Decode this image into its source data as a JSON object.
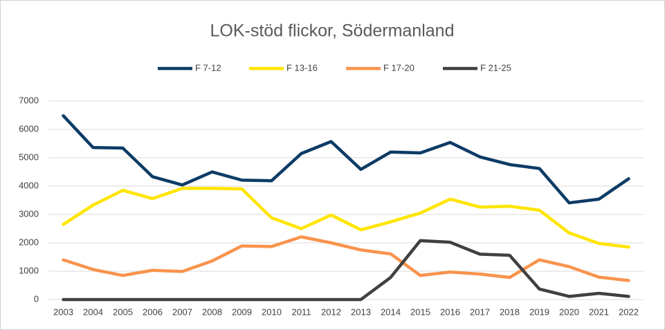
{
  "chart_data": {
    "type": "line",
    "title": "LOK-stöd flickor, Södermanland",
    "categories": [
      "2003",
      "2004",
      "2005",
      "2006",
      "2007",
      "2008",
      "2009",
      "2010",
      "2011",
      "2012",
      "2013",
      "2014",
      "2015",
      "2016",
      "2017",
      "2018",
      "2019",
      "2020",
      "2021",
      "2022"
    ],
    "series": [
      {
        "name": "F 7-12",
        "color": "#0d3b66",
        "values": [
          6480,
          5360,
          5340,
          4330,
          4040,
          4500,
          4210,
          4190,
          5150,
          5570,
          4590,
          5200,
          5170,
          5540,
          5030,
          4760,
          4620,
          3410,
          3540,
          4260
        ]
      },
      {
        "name": "F 13-16",
        "color": "#ffe500",
        "values": [
          2650,
          3330,
          3850,
          3560,
          3920,
          3920,
          3900,
          2880,
          2500,
          2980,
          2460,
          2740,
          3050,
          3540,
          3260,
          3290,
          3150,
          2350,
          1980,
          1850
        ]
      },
      {
        "name": "F 17-20",
        "color": "#f9934c",
        "values": [
          1400,
          1060,
          850,
          1030,
          990,
          1360,
          1890,
          1870,
          2210,
          2000,
          1750,
          1610,
          850,
          970,
          900,
          780,
          1400,
          1160,
          790,
          670
        ]
      },
      {
        "name": "F 21-25",
        "color": "#404040",
        "values": [
          0,
          0,
          0,
          0,
          0,
          0,
          0,
          0,
          0,
          0,
          0,
          780,
          2080,
          2020,
          1600,
          1560,
          370,
          110,
          220,
          110
        ]
      }
    ],
    "ylim": [
      0,
      7000
    ],
    "yticks": [
      0,
      1000,
      2000,
      3000,
      4000,
      5000,
      6000,
      7000
    ],
    "grid": true,
    "legend": "top"
  }
}
